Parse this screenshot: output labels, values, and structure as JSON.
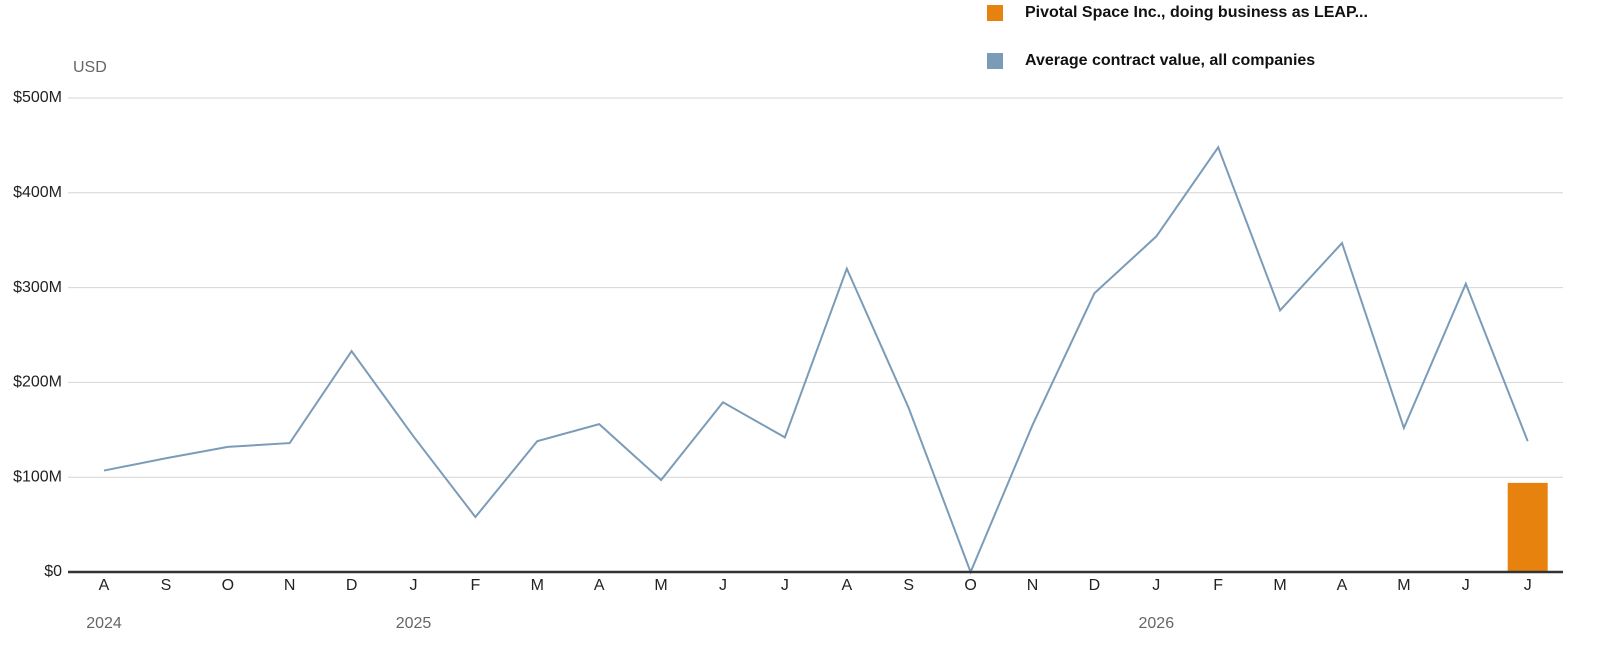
{
  "chart_data": {
    "type": "bar+line",
    "y_axis_label": "USD",
    "categories": [
      "A",
      "S",
      "O",
      "N",
      "D",
      "J",
      "F",
      "M",
      "A",
      "M",
      "J",
      "J",
      "A",
      "S",
      "O",
      "N",
      "D",
      "J",
      "F",
      "M",
      "A",
      "M",
      "J",
      "J"
    ],
    "years": [
      "2024",
      null,
      null,
      null,
      null,
      "2025",
      null,
      null,
      null,
      null,
      null,
      null,
      null,
      null,
      null,
      null,
      null,
      "2026",
      null,
      null,
      null,
      null,
      null,
      null
    ],
    "series": [
      {
        "name": "Pivotal Space Inc., doing business as LEAP...",
        "type": "bar",
        "color": "#e8820f",
        "values": [
          null,
          null,
          null,
          null,
          null,
          null,
          null,
          null,
          null,
          null,
          null,
          null,
          null,
          null,
          null,
          null,
          null,
          null,
          null,
          null,
          null,
          null,
          null,
          94
        ]
      },
      {
        "name": "Average contract value, all companies",
        "type": "line",
        "color": "#7b9cb8",
        "values": [
          107,
          120,
          132,
          136,
          233,
          143,
          58,
          138,
          156,
          97,
          179,
          142,
          320,
          173,
          0,
          155,
          294,
          354,
          448,
          276,
          347,
          152,
          304,
          138
        ]
      }
    ],
    "ylim": [
      0,
      500
    ],
    "yticks": [
      {
        "value": 0,
        "label": "$0"
      },
      {
        "value": 100,
        "label": "$100M"
      },
      {
        "value": 200,
        "label": "$200M"
      },
      {
        "value": 300,
        "label": "$300M"
      },
      {
        "value": 400,
        "label": "$400M"
      },
      {
        "value": 500,
        "label": "$500M"
      }
    ],
    "grid": true
  }
}
